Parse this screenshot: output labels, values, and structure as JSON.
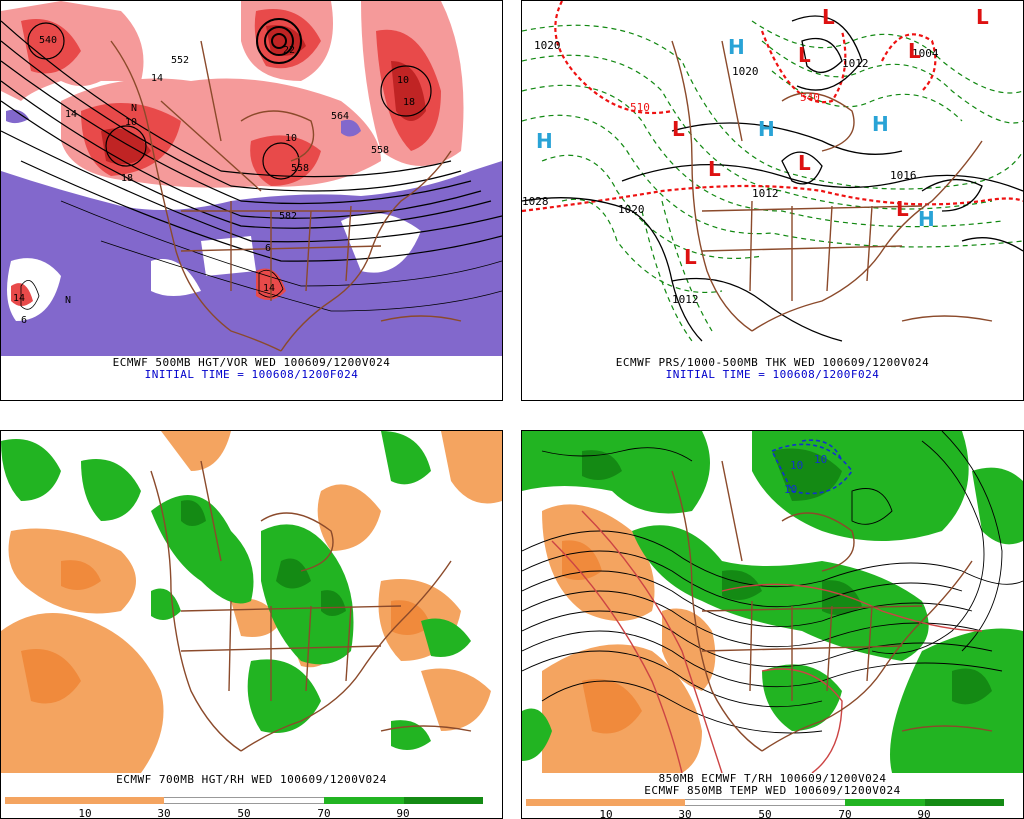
{
  "panels": {
    "vorticity": {
      "caption1": "ECMWF 500MB HGT/VOR WED 100609/1200V024",
      "caption2": "INITIAL TIME = 100608/1200F024",
      "contour_labels": [
        "540",
        "552",
        "558",
        "558",
        "564",
        "582",
        "6",
        "6",
        "10",
        "10",
        "10",
        "14",
        "14",
        "14",
        "14",
        "18",
        "18",
        "22",
        "N",
        "N"
      ]
    },
    "pressure": {
      "caption1": "ECMWF PRS/1000-500MB THK WED 100609/1200V024",
      "caption2": "INITIAL TIME = 100608/1200F024",
      "centers": [
        "H",
        "H",
        "H",
        "H",
        "H",
        "L",
        "L",
        "L",
        "L",
        "L",
        "L",
        "L",
        "L",
        "L"
      ],
      "isobar_labels": [
        "1020",
        "1020",
        "1020",
        "1028",
        "1012",
        "1012",
        "1004",
        "1016",
        "510",
        "540",
        "1012"
      ]
    },
    "rh700": {
      "caption1": "ECMWF 700MB HGT/RH WED 100609/1200V024",
      "colorbar_ticks": [
        "10",
        "30",
        "50",
        "70",
        "90"
      ]
    },
    "temp850": {
      "caption1": "850MB ECMWF T/RH 100609/1200V024",
      "caption2": "ECMWF 850MB TEMP WED 100609/1200V024",
      "colorbar_ticks": [
        "10",
        "30",
        "50",
        "70",
        "90"
      ],
      "contour_labels": [
        "10",
        "10",
        "10"
      ]
    }
  },
  "colors": {
    "vort_red_dark": "#c02424",
    "vort_red_mid": "#e84a4a",
    "vort_red_light": "#f59a9a",
    "vort_purple": "#8268cc",
    "dry_orange": "#f4a460",
    "dry_orange_dark": "#f08a3c",
    "moist_green": "#22b422",
    "moist_green_dark": "#148a14",
    "moist_green_light": "#55cc55",
    "map_brown": "#8b4a2b",
    "thk_red": "#ee1111",
    "thk_green": "#118811"
  }
}
